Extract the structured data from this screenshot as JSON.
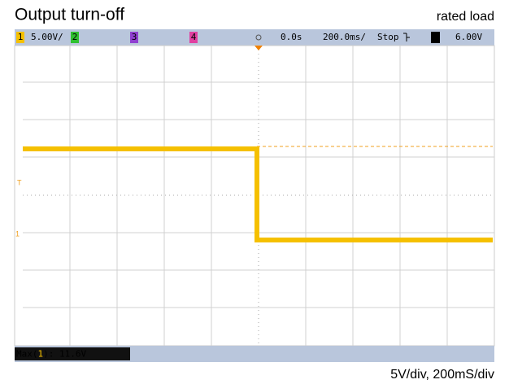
{
  "header": {
    "title": "Output turn-off",
    "subtitle": "rated load"
  },
  "status_bar": {
    "ch1": "1",
    "ch1_scale": "5.00V/",
    "ch2": "2",
    "ch3": "3",
    "ch4": "4",
    "time_offset": "0.0s",
    "time_scale": "200.0ms/",
    "run_state": "Stop",
    "trigger_channel": "1",
    "trigger_level": "6.00V"
  },
  "screen": {
    "trigger_marker": "T",
    "channel_marker": "1"
  },
  "measurement": {
    "prefix": "Max(",
    "channel": "1",
    "suffix": "): 11.6V"
  },
  "caption": "5V/div, 200mS/div"
}
